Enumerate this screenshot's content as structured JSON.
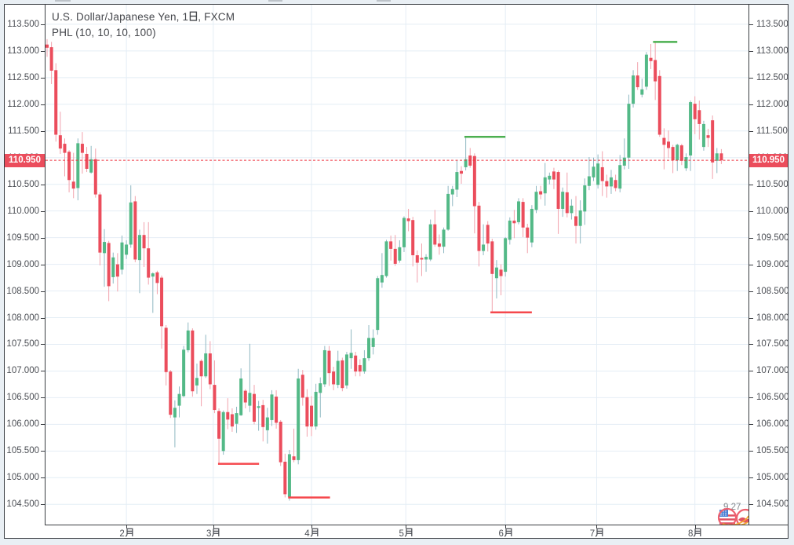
{
  "page": {
    "background": "#e9eff4"
  },
  "chart": {
    "title": "U.S. Dollar/Japanese Yen, 1日, FXCM",
    "indicator_label": "PHL (10, 10, 10, 100)",
    "current_price_label": "110.950",
    "watermark_text": "9 27",
    "colors": {
      "candle_up": "#53b987",
      "candle_down": "#eb4d5c",
      "wick_up": "#8fb8c2",
      "wick_down": "#f2a2ac",
      "pivot_low_line": "#f5484d",
      "pivot_high_line": "#4caf50",
      "price_line": "#ef333f",
      "price_label_bg": "#eb4d5c",
      "grid": "#e4edf5",
      "axis_line": "#3a3d42",
      "label_text": "#4c4f55"
    }
  },
  "chart_data": {
    "type": "candlestick",
    "title": "U.S. Dollar/Japanese Yen, 1日, FXCM",
    "indicator": "PHL (10, 10, 10, 100)",
    "y_axis": {
      "min": 104.25,
      "max": 113.6,
      "tick_start": 104.5,
      "tick_step": 0.5,
      "tick_end": 113.5,
      "label_format": "3dp",
      "grid": true
    },
    "x_axis": {
      "tick_labels": [
        "2月",
        "3月",
        "4月",
        "5月",
        "6月",
        "7月",
        "8月"
      ],
      "tick_bar_index": [
        18,
        37.7,
        60,
        81.4,
        104,
        124.7,
        147
      ],
      "grid": true
    },
    "current_price": 110.95,
    "candles": [
      {
        "o": 113.12,
        "h": 113.22,
        "l": 112.89,
        "c": 113.06
      },
      {
        "o": 113.07,
        "h": 113.17,
        "l": 112.38,
        "c": 112.63
      },
      {
        "o": 112.64,
        "h": 112.77,
        "l": 111.3,
        "c": 111.43
      },
      {
        "o": 111.42,
        "h": 111.86,
        "l": 111.07,
        "c": 111.17
      },
      {
        "o": 111.26,
        "h": 111.36,
        "l": 110.65,
        "c": 111.09
      },
      {
        "o": 111.11,
        "h": 111.14,
        "l": 110.35,
        "c": 110.58
      },
      {
        "o": 110.55,
        "h": 111.09,
        "l": 110.24,
        "c": 110.42
      },
      {
        "o": 110.43,
        "h": 111.36,
        "l": 110.2,
        "c": 111.27
      },
      {
        "o": 111.26,
        "h": 111.48,
        "l": 110.7,
        "c": 111.09
      },
      {
        "o": 111.07,
        "h": 111.2,
        "l": 110.73,
        "c": 110.79
      },
      {
        "o": 110.72,
        "h": 111.22,
        "l": 110.7,
        "c": 110.97
      },
      {
        "o": 110.97,
        "h": 111.17,
        "l": 110.25,
        "c": 110.31
      },
      {
        "o": 110.31,
        "h": 110.35,
        "l": 108.98,
        "c": 109.22
      },
      {
        "o": 109.21,
        "h": 109.66,
        "l": 108.58,
        "c": 109.42
      },
      {
        "o": 109.4,
        "h": 109.44,
        "l": 108.31,
        "c": 108.59
      },
      {
        "o": 108.76,
        "h": 109.22,
        "l": 108.64,
        "c": 109.13
      },
      {
        "o": 109.0,
        "h": 109.21,
        "l": 108.49,
        "c": 108.77
      },
      {
        "o": 108.9,
        "h": 109.54,
        "l": 108.81,
        "c": 109.41
      },
      {
        "o": 109.18,
        "h": 109.45,
        "l": 109.1,
        "c": 109.37
      },
      {
        "o": 109.37,
        "h": 110.48,
        "l": 109.31,
        "c": 110.16
      },
      {
        "o": 110.18,
        "h": 110.28,
        "l": 109.04,
        "c": 109.09
      },
      {
        "o": 109.08,
        "h": 109.65,
        "l": 108.46,
        "c": 109.55
      },
      {
        "o": 109.55,
        "h": 109.79,
        "l": 108.95,
        "c": 109.3
      },
      {
        "o": 109.3,
        "h": 109.79,
        "l": 108.62,
        "c": 108.75
      },
      {
        "o": 108.77,
        "h": 108.85,
        "l": 108.09,
        "c": 108.83
      },
      {
        "o": 108.85,
        "h": 108.88,
        "l": 108.44,
        "c": 108.65
      },
      {
        "o": 108.75,
        "h": 108.79,
        "l": 107.42,
        "c": 107.84
      },
      {
        "o": 107.81,
        "h": 107.86,
        "l": 106.73,
        "c": 106.98
      },
      {
        "o": 106.99,
        "h": 107.02,
        "l": 106.12,
        "c": 106.18
      },
      {
        "o": 106.13,
        "h": 106.45,
        "l": 105.57,
        "c": 106.31
      },
      {
        "o": 106.35,
        "h": 106.71,
        "l": 106.13,
        "c": 106.57
      },
      {
        "o": 106.53,
        "h": 107.47,
        "l": 106.51,
        "c": 107.4
      },
      {
        "o": 107.39,
        "h": 107.91,
        "l": 107.35,
        "c": 107.76
      },
      {
        "o": 107.76,
        "h": 107.8,
        "l": 106.52,
        "c": 106.62
      },
      {
        "o": 106.73,
        "h": 107.14,
        "l": 106.57,
        "c": 106.87
      },
      {
        "o": 107.19,
        "h": 107.22,
        "l": 106.34,
        "c": 106.9
      },
      {
        "o": 106.9,
        "h": 107.68,
        "l": 106.87,
        "c": 107.33
      },
      {
        "o": 107.33,
        "h": 107.56,
        "l": 106.66,
        "c": 106.75
      },
      {
        "o": 106.74,
        "h": 107.2,
        "l": 106.21,
        "c": 106.27
      },
      {
        "o": 106.25,
        "h": 106.3,
        "l": 105.25,
        "c": 105.73
      },
      {
        "o": 105.5,
        "h": 106.26,
        "l": 105.43,
        "c": 106.23
      },
      {
        "o": 106.23,
        "h": 106.49,
        "l": 105.91,
        "c": 106.09
      },
      {
        "o": 106.19,
        "h": 106.3,
        "l": 105.86,
        "c": 105.96
      },
      {
        "o": 106.01,
        "h": 106.33,
        "l": 105.84,
        "c": 106.21
      },
      {
        "o": 106.17,
        "h": 107.05,
        "l": 106.16,
        "c": 106.86
      },
      {
        "o": 106.63,
        "h": 106.66,
        "l": 106.3,
        "c": 106.41
      },
      {
        "o": 106.35,
        "h": 107.51,
        "l": 106.23,
        "c": 106.59
      },
      {
        "o": 106.57,
        "h": 106.74,
        "l": 106.0,
        "c": 106.05
      },
      {
        "o": 106.31,
        "h": 106.44,
        "l": 105.88,
        "c": 106.34
      },
      {
        "o": 106.36,
        "h": 106.46,
        "l": 105.68,
        "c": 105.95
      },
      {
        "o": 105.89,
        "h": 106.31,
        "l": 105.64,
        "c": 106.13
      },
      {
        "o": 106.08,
        "h": 106.64,
        "l": 105.97,
        "c": 106.56
      },
      {
        "o": 106.52,
        "h": 106.64,
        "l": 105.92,
        "c": 106.03
      },
      {
        "o": 106.05,
        "h": 106.08,
        "l": 105.22,
        "c": 105.29
      },
      {
        "o": 105.3,
        "h": 105.45,
        "l": 104.63,
        "c": 104.69
      },
      {
        "o": 104.64,
        "h": 105.52,
        "l": 104.57,
        "c": 105.44
      },
      {
        "o": 105.4,
        "h": 105.92,
        "l": 105.29,
        "c": 105.33
      },
      {
        "o": 105.33,
        "h": 107.04,
        "l": 105.25,
        "c": 106.86
      },
      {
        "o": 106.93,
        "h": 107.02,
        "l": 106.35,
        "c": 106.5
      },
      {
        "o": 106.51,
        "h": 106.66,
        "l": 105.77,
        "c": 105.96
      },
      {
        "o": 106.35,
        "h": 106.53,
        "l": 105.78,
        "c": 105.96
      },
      {
        "o": 105.96,
        "h": 106.76,
        "l": 105.9,
        "c": 106.61
      },
      {
        "o": 106.59,
        "h": 106.88,
        "l": 106.13,
        "c": 106.77
      },
      {
        "o": 106.75,
        "h": 107.47,
        "l": 106.7,
        "c": 107.39
      },
      {
        "o": 107.38,
        "h": 107.47,
        "l": 106.72,
        "c": 106.96
      },
      {
        "o": 106.99,
        "h": 107.08,
        "l": 106.64,
        "c": 106.75
      },
      {
        "o": 106.74,
        "h": 107.38,
        "l": 106.68,
        "c": 107.19
      },
      {
        "o": 107.2,
        "h": 107.25,
        "l": 106.62,
        "c": 106.68
      },
      {
        "o": 106.73,
        "h": 107.36,
        "l": 106.67,
        "c": 107.31
      },
      {
        "o": 107.24,
        "h": 107.78,
        "l": 107.04,
        "c": 107.34
      },
      {
        "o": 107.29,
        "h": 107.36,
        "l": 106.9,
        "c": 106.99
      },
      {
        "o": 107.11,
        "h": 107.22,
        "l": 106.9,
        "c": 106.99
      },
      {
        "o": 106.99,
        "h": 107.39,
        "l": 106.95,
        "c": 107.24
      },
      {
        "o": 107.24,
        "h": 107.86,
        "l": 107.19,
        "c": 107.62
      },
      {
        "o": 107.45,
        "h": 107.78,
        "l": 107.31,
        "c": 107.62
      },
      {
        "o": 107.77,
        "h": 108.78,
        "l": 107.68,
        "c": 108.74
      },
      {
        "o": 108.66,
        "h": 109.21,
        "l": 108.56,
        "c": 108.8
      },
      {
        "o": 108.78,
        "h": 109.46,
        "l": 108.75,
        "c": 109.43
      },
      {
        "o": 109.43,
        "h": 109.54,
        "l": 109.07,
        "c": 109.29
      },
      {
        "o": 109.29,
        "h": 109.55,
        "l": 108.97,
        "c": 109.01
      },
      {
        "o": 109.07,
        "h": 109.45,
        "l": 109.03,
        "c": 109.32
      },
      {
        "o": 109.32,
        "h": 109.9,
        "l": 109.23,
        "c": 109.87
      },
      {
        "o": 109.86,
        "h": 110.04,
        "l": 109.62,
        "c": 109.81
      },
      {
        "o": 109.83,
        "h": 109.89,
        "l": 108.96,
        "c": 109.17
      },
      {
        "o": 109.17,
        "h": 109.26,
        "l": 108.66,
        "c": 109.03
      },
      {
        "o": 109.12,
        "h": 109.39,
        "l": 108.78,
        "c": 109.09
      },
      {
        "o": 109.09,
        "h": 109.19,
        "l": 108.86,
        "c": 109.14
      },
      {
        "o": 109.09,
        "h": 109.84,
        "l": 109.06,
        "c": 109.75
      },
      {
        "o": 109.75,
        "h": 110.02,
        "l": 109.33,
        "c": 109.37
      },
      {
        "o": 109.39,
        "h": 109.56,
        "l": 109.18,
        "c": 109.33
      },
      {
        "o": 109.33,
        "h": 109.69,
        "l": 109.21,
        "c": 109.65
      },
      {
        "o": 109.65,
        "h": 110.47,
        "l": 109.63,
        "c": 110.32
      },
      {
        "o": 110.31,
        "h": 110.47,
        "l": 110.09,
        "c": 110.41
      },
      {
        "o": 110.4,
        "h": 110.96,
        "l": 110.26,
        "c": 110.73
      },
      {
        "o": 110.75,
        "h": 110.84,
        "l": 110.51,
        "c": 110.7
      },
      {
        "o": 110.82,
        "h": 111.37,
        "l": 110.76,
        "c": 110.97
      },
      {
        "o": 111.04,
        "h": 111.18,
        "l": 110.81,
        "c": 110.85
      },
      {
        "o": 111.03,
        "h": 111.08,
        "l": 109.58,
        "c": 110.09
      },
      {
        "o": 110.1,
        "h": 110.17,
        "l": 108.96,
        "c": 109.25
      },
      {
        "o": 109.25,
        "h": 109.75,
        "l": 109.17,
        "c": 109.37
      },
      {
        "o": 109.74,
        "h": 109.81,
        "l": 109.24,
        "c": 109.39
      },
      {
        "o": 109.43,
        "h": 109.48,
        "l": 108.12,
        "c": 108.82
      },
      {
        "o": 108.74,
        "h": 109.08,
        "l": 108.36,
        "c": 108.94
      },
      {
        "o": 108.9,
        "h": 109.0,
        "l": 108.42,
        "c": 108.78
      },
      {
        "o": 108.86,
        "h": 109.51,
        "l": 108.77,
        "c": 109.49
      },
      {
        "o": 109.46,
        "h": 109.88,
        "l": 109.37,
        "c": 109.82
      },
      {
        "o": 109.82,
        "h": 110.02,
        "l": 109.49,
        "c": 109.77
      },
      {
        "o": 109.79,
        "h": 110.24,
        "l": 109.75,
        "c": 110.18
      },
      {
        "o": 110.17,
        "h": 110.24,
        "l": 109.51,
        "c": 109.69
      },
      {
        "o": 109.69,
        "h": 109.76,
        "l": 109.21,
        "c": 109.5
      },
      {
        "o": 109.41,
        "h": 110.11,
        "l": 109.32,
        "c": 110.04
      },
      {
        "o": 110.02,
        "h": 110.47,
        "l": 109.96,
        "c": 110.36
      },
      {
        "o": 110.37,
        "h": 110.47,
        "l": 110.22,
        "c": 110.31
      },
      {
        "o": 110.33,
        "h": 110.9,
        "l": 110.1,
        "c": 110.63
      },
      {
        "o": 110.59,
        "h": 110.72,
        "l": 110.5,
        "c": 110.66
      },
      {
        "o": 110.74,
        "h": 110.81,
        "l": 110.41,
        "c": 110.59
      },
      {
        "o": 110.73,
        "h": 110.76,
        "l": 109.57,
        "c": 110.04
      },
      {
        "o": 110.04,
        "h": 110.44,
        "l": 109.89,
        "c": 110.36
      },
      {
        "o": 110.35,
        "h": 110.72,
        "l": 109.88,
        "c": 109.96
      },
      {
        "o": 109.96,
        "h": 110.22,
        "l": 109.84,
        "c": 110.1
      },
      {
        "o": 109.9,
        "h": 110.28,
        "l": 109.39,
        "c": 109.72
      },
      {
        "o": 109.72,
        "h": 110.2,
        "l": 109.39,
        "c": 110.01
      },
      {
        "o": 109.99,
        "h": 110.61,
        "l": 109.74,
        "c": 110.48
      },
      {
        "o": 110.47,
        "h": 111.01,
        "l": 110.39,
        "c": 110.65
      },
      {
        "o": 110.63,
        "h": 111.0,
        "l": 110.56,
        "c": 110.83
      },
      {
        "o": 110.49,
        "h": 111.06,
        "l": 110.42,
        "c": 110.89
      },
      {
        "o": 110.82,
        "h": 111.12,
        "l": 110.28,
        "c": 110.56
      },
      {
        "o": 110.56,
        "h": 110.68,
        "l": 110.25,
        "c": 110.46
      },
      {
        "o": 110.46,
        "h": 110.77,
        "l": 110.32,
        "c": 110.63
      },
      {
        "o": 110.58,
        "h": 110.68,
        "l": 110.37,
        "c": 110.43
      },
      {
        "o": 110.42,
        "h": 111.05,
        "l": 110.35,
        "c": 110.86
      },
      {
        "o": 110.85,
        "h": 111.36,
        "l": 110.78,
        "c": 111.0
      },
      {
        "o": 111.0,
        "h": 112.18,
        "l": 110.79,
        "c": 112.01
      },
      {
        "o": 112.01,
        "h": 112.64,
        "l": 111.94,
        "c": 112.54
      },
      {
        "o": 112.54,
        "h": 112.79,
        "l": 112.27,
        "c": 112.32
      },
      {
        "o": 112.18,
        "h": 112.48,
        "l": 112.13,
        "c": 112.28
      },
      {
        "o": 112.33,
        "h": 112.98,
        "l": 112.27,
        "c": 112.93
      },
      {
        "o": 112.87,
        "h": 113.13,
        "l": 112.66,
        "c": 112.81
      },
      {
        "o": 112.83,
        "h": 113.17,
        "l": 112.08,
        "c": 112.43
      },
      {
        "o": 112.53,
        "h": 112.64,
        "l": 111.39,
        "c": 111.43
      },
      {
        "o": 111.37,
        "h": 111.55,
        "l": 110.78,
        "c": 111.24
      },
      {
        "o": 111.3,
        "h": 111.51,
        "l": 110.99,
        "c": 111.18
      },
      {
        "o": 111.2,
        "h": 111.24,
        "l": 110.71,
        "c": 110.95
      },
      {
        "o": 110.95,
        "h": 111.26,
        "l": 110.75,
        "c": 111.24
      },
      {
        "o": 111.23,
        "h": 111.26,
        "l": 110.86,
        "c": 110.94
      },
      {
        "o": 110.8,
        "h": 111.08,
        "l": 110.75,
        "c": 111.01
      },
      {
        "o": 111.04,
        "h": 112.07,
        "l": 110.75,
        "c": 112.04
      },
      {
        "o": 112.01,
        "h": 112.15,
        "l": 111.44,
        "c": 111.72
      },
      {
        "o": 111.89,
        "h": 112.07,
        "l": 111.34,
        "c": 111.63
      },
      {
        "o": 111.2,
        "h": 111.69,
        "l": 111.13,
        "c": 111.63
      },
      {
        "o": 111.42,
        "h": 111.54,
        "l": 111.2,
        "c": 111.37
      },
      {
        "o": 111.7,
        "h": 111.79,
        "l": 110.6,
        "c": 110.91
      },
      {
        "o": 110.94,
        "h": 111.18,
        "l": 110.71,
        "c": 111.08
      },
      {
        "o": 111.08,
        "h": 111.16,
        "l": 110.88,
        "c": 110.95
      }
    ],
    "pivot_lines": [
      {
        "type": "low",
        "price": 105.26,
        "from_bar": 38.8,
        "to_bar": 48.1
      },
      {
        "type": "low",
        "price": 104.63,
        "from_bar": 54.7,
        "to_bar": 64.2
      },
      {
        "type": "high",
        "price": 111.39,
        "from_bar": 94.7,
        "to_bar": 104.0
      },
      {
        "type": "low",
        "price": 108.1,
        "from_bar": 100.6,
        "to_bar": 110.0
      },
      {
        "type": "high",
        "price": 113.17,
        "from_bar": 137.5,
        "to_bar": 143.0
      }
    ]
  }
}
